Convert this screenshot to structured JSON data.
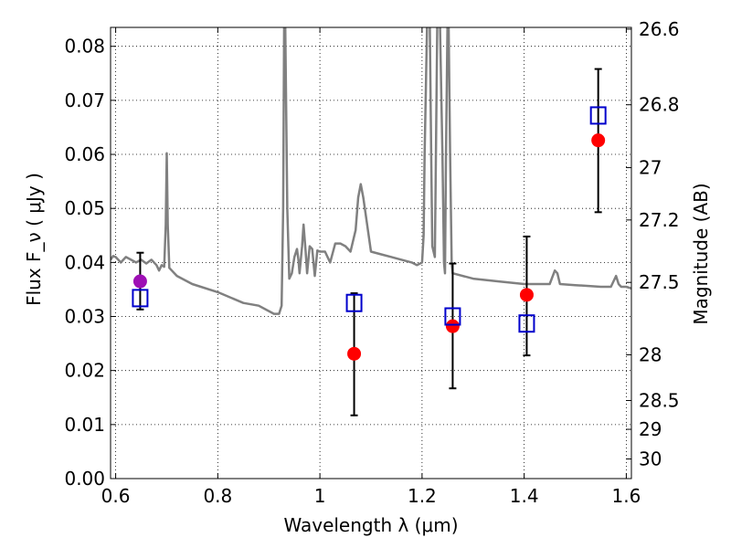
{
  "chart_data": {
    "type": "scatter",
    "xlabel": "Wavelength  λ (μm)",
    "ylabel": "Flux  F_ν  ( μJy )",
    "y2label": "Magnitude (AB)",
    "xlim": [
      0.59,
      1.61
    ],
    "ylim": [
      0.0,
      0.0835
    ],
    "grid": true,
    "x_ticks": [
      0.6,
      0.8,
      1.0,
      1.2,
      1.4,
      1.6
    ],
    "x_tick_labels": [
      "0.6",
      "0.8",
      "1",
      "1.2",
      "1.4",
      "1.6"
    ],
    "y_ticks": [
      0.0,
      0.01,
      0.02,
      0.03,
      0.04,
      0.05,
      0.06,
      0.07,
      0.08
    ],
    "y_tick_labels": [
      "0.00",
      "0.01",
      "0.02",
      "0.03",
      "0.04",
      "0.05",
      "0.06",
      "0.07",
      "0.08"
    ],
    "y2_ticks": [
      26.6,
      26.8,
      27,
      27.2,
      27.5,
      28,
      28.5,
      29,
      30
    ],
    "y2_tick_labels": [
      "26.6",
      "26.8",
      "27",
      "27.2",
      "27.5",
      "28",
      "28.5",
      "29",
      "30"
    ],
    "series": [
      {
        "kind": "line",
        "color": "#808080",
        "x": [
          0.59,
          0.595,
          0.6,
          0.61,
          0.62,
          0.63,
          0.64,
          0.65,
          0.66,
          0.67,
          0.68,
          0.685,
          0.69,
          0.695,
          0.698,
          0.7,
          0.702,
          0.705,
          0.72,
          0.75,
          0.8,
          0.85,
          0.88,
          0.9,
          0.91,
          0.92,
          0.925,
          0.928,
          0.93,
          0.932,
          0.936,
          0.94,
          0.945,
          0.95,
          0.955,
          0.958,
          0.96,
          0.965,
          0.968,
          0.972,
          0.975,
          0.98,
          0.985,
          0.99,
          0.995,
          1.0,
          1.01,
          1.02,
          1.03,
          1.04,
          1.05,
          1.06,
          1.07,
          1.075,
          1.08,
          1.085,
          1.1,
          1.12,
          1.14,
          1.16,
          1.18,
          1.19,
          1.2,
          1.203,
          1.205,
          1.21,
          1.215,
          1.218,
          1.22,
          1.225,
          1.23,
          1.235,
          1.24,
          1.243,
          1.245,
          1.247,
          1.25,
          1.252,
          1.255,
          1.258,
          1.26,
          1.3,
          1.35,
          1.4,
          1.45,
          1.46,
          1.465,
          1.47,
          1.5,
          1.55,
          1.57,
          1.58,
          1.585,
          1.59,
          1.6,
          1.61
        ],
        "y": [
          0.0405,
          0.0412,
          0.041,
          0.04,
          0.041,
          0.0405,
          0.04,
          0.0405,
          0.0398,
          0.0405,
          0.0395,
          0.0385,
          0.0395,
          0.0392,
          0.047,
          0.0602,
          0.047,
          0.039,
          0.0375,
          0.036,
          0.0345,
          0.0325,
          0.032,
          0.031,
          0.0305,
          0.0305,
          0.032,
          0.05,
          0.085,
          0.085,
          0.05,
          0.037,
          0.038,
          0.041,
          0.0425,
          0.0405,
          0.038,
          0.043,
          0.047,
          0.042,
          0.038,
          0.043,
          0.0425,
          0.0375,
          0.0422,
          0.042,
          0.042,
          0.04,
          0.0435,
          0.0435,
          0.043,
          0.042,
          0.046,
          0.052,
          0.0545,
          0.052,
          0.042,
          0.0415,
          0.041,
          0.0405,
          0.04,
          0.0395,
          0.04,
          0.045,
          0.06,
          0.085,
          0.085,
          0.06,
          0.043,
          0.041,
          0.085,
          0.085,
          0.06,
          0.04,
          0.038,
          0.06,
          0.085,
          0.085,
          0.06,
          0.04,
          0.038,
          0.037,
          0.0365,
          0.036,
          0.036,
          0.0385,
          0.038,
          0.036,
          0.0358,
          0.0355,
          0.0355,
          0.0375,
          0.036,
          0.0355,
          0.0355,
          0.0352
        ]
      },
      {
        "kind": "errorbar",
        "color": "#000000",
        "x": [
          0.648,
          1.067,
          1.26,
          1.405,
          1.545
        ],
        "y_low": [
          0.0313,
          0.0117,
          0.0167,
          0.0228,
          0.0493
        ],
        "y_high": [
          0.0418,
          0.0343,
          0.0398,
          0.0448,
          0.0758
        ]
      },
      {
        "kind": "marker",
        "shape": "circle",
        "color": "#ff0000",
        "x": [
          1.067,
          1.26,
          1.405,
          1.545
        ],
        "y": [
          0.0231,
          0.0282,
          0.034,
          0.0626
        ]
      },
      {
        "kind": "marker",
        "shape": "circle",
        "color": "#9e0fb5",
        "x": [
          0.648
        ],
        "y": [
          0.0365
        ]
      },
      {
        "kind": "marker",
        "shape": "square",
        "color": "#0000cc",
        "x": [
          0.648,
          1.067,
          1.26,
          1.405,
          1.545
        ],
        "y": [
          0.0334,
          0.0325,
          0.03,
          0.0287,
          0.0672
        ]
      }
    ]
  }
}
